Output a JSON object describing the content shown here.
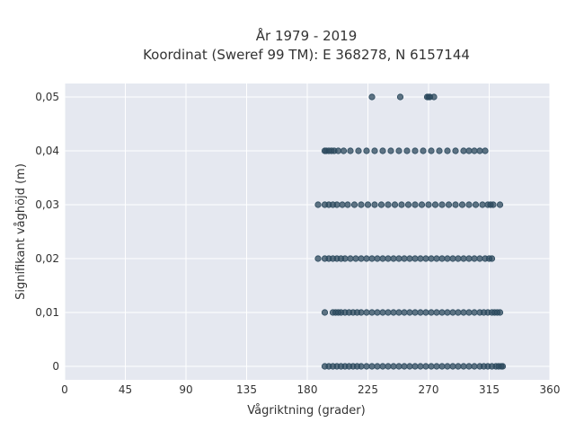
{
  "chart_data": {
    "type": "scatter",
    "title": "År 1979 - 2019",
    "subtitle": "Koordinat (Sweref 99 TM): E 368278, N 6157144",
    "xlabel": "Vågriktning (grader)",
    "ylabel": "Signifikant våghöjd (m)",
    "xlim": [
      0,
      360
    ],
    "ylim": [
      -0.0025,
      0.0525
    ],
    "xticks": [
      0,
      45,
      90,
      135,
      180,
      225,
      270,
      315,
      360
    ],
    "xtick_labels": [
      "0",
      "45",
      "90",
      "135",
      "180",
      "225",
      "270",
      "315",
      "360"
    ],
    "yticks": [
      0,
      0.01,
      0.02,
      0.03,
      0.04,
      0.05
    ],
    "ytick_labels": [
      "0",
      "0,01",
      "0,02",
      "0,03",
      "0,04",
      "0,05"
    ],
    "grid": true,
    "marker_color": "#2c4a5e",
    "plot_background": "#e5e8f0",
    "series": [
      {
        "points": [
          {
            "y": 0.05,
            "x": [
              228,
              249,
              269,
              270,
              271,
              274
            ]
          },
          {
            "y": 0.04,
            "x": [
              193,
              194,
              196,
              198,
              200,
              203,
              207,
              212,
              218,
              224,
              230,
              236,
              242,
              248,
              254,
              260,
              266,
              272,
              278,
              284,
              290,
              296,
              300,
              304,
              308,
              312
            ]
          },
          {
            "y": 0.03,
            "x": [
              188,
              193,
              196,
              199,
              202,
              206,
              210,
              215,
              220,
              225,
              230,
              235,
              240,
              245,
              250,
              255,
              260,
              265,
              270,
              275,
              280,
              285,
              290,
              295,
              300,
              305,
              310,
              314,
              316,
              318,
              323
            ]
          },
          {
            "y": 0.02,
            "x": [
              188,
              193,
              196,
              199,
              202,
              205,
              208,
              212,
              216,
              220,
              224,
              228,
              232,
              236,
              240,
              244,
              248,
              252,
              256,
              260,
              264,
              268,
              272,
              276,
              280,
              284,
              288,
              292,
              296,
              300,
              304,
              308,
              312,
              315,
              317
            ]
          },
          {
            "y": 0.01,
            "x": [
              193,
              199,
              201,
              203,
              205,
              208,
              211,
              214,
              217,
              220,
              224,
              228,
              232,
              236,
              240,
              244,
              248,
              252,
              256,
              260,
              264,
              268,
              272,
              276,
              280,
              284,
              288,
              292,
              296,
              300,
              304,
              308,
              311,
              314,
              317,
              319,
              321,
              323
            ]
          },
          {
            "y": 0,
            "x": [
              193,
              196,
              199,
              202,
              205,
              208,
              211,
              214,
              217,
              220,
              224,
              228,
              232,
              236,
              240,
              244,
              248,
              252,
              256,
              260,
              264,
              268,
              272,
              276,
              280,
              284,
              288,
              292,
              296,
              300,
              304,
              308,
              311,
              314,
              317,
              320,
              322,
              324,
              325
            ]
          }
        ]
      }
    ]
  }
}
